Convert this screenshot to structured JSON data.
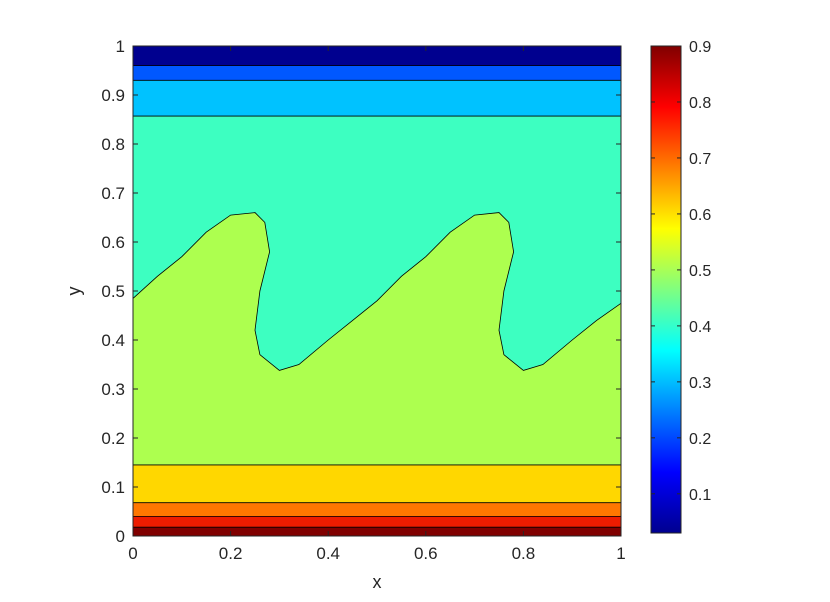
{
  "chart_data": {
    "type": "contour-filled",
    "xlabel": "x",
    "ylabel": "y",
    "xlim": [
      0,
      1
    ],
    "ylim": [
      0,
      1
    ],
    "xticks": [
      "0",
      "0.2",
      "0.4",
      "0.6",
      "0.8",
      "1"
    ],
    "yticks": [
      "0",
      "0.1",
      "0.2",
      "0.3",
      "0.4",
      "0.5",
      "0.6",
      "0.7",
      "0.8",
      "0.9",
      "1"
    ],
    "colorbar": {
      "colormap": "jet",
      "range": [
        0.03,
        0.9
      ],
      "ticks": [
        "0.1",
        "0.2",
        "0.3",
        "0.4",
        "0.5",
        "0.6",
        "0.7",
        "0.8",
        "0.9"
      ]
    },
    "bands": [
      {
        "level": 0.9,
        "color": "#800000",
        "y_top": 0.018
      },
      {
        "level": 0.8,
        "color": "#ED1C00",
        "y_top": 0.04
      },
      {
        "level": 0.7,
        "color": "#FF7700",
        "y_top": 0.068
      },
      {
        "level": 0.6,
        "color": "#FFD700",
        "y_top": 0.145
      },
      {
        "level": 0.5,
        "color": "#ADFF4F",
        "y_top": "wavy"
      },
      {
        "level": 0.4,
        "color": "#3DFFC1",
        "y_top": 0.857
      },
      {
        "level": 0.3,
        "color": "#00C2FF",
        "y_top": 0.93
      },
      {
        "level": 0.2,
        "color": "#0058FF",
        "y_top": 0.96
      },
      {
        "level": 0.1,
        "color": "#00008F",
        "y_top": 1.0
      }
    ],
    "wavy_interface": {
      "description_levels": "boundary between 0.5 and 0.4 regions",
      "points": [
        [
          0.0,
          0.485
        ],
        [
          0.05,
          0.53
        ],
        [
          0.1,
          0.57
        ],
        [
          0.15,
          0.62
        ],
        [
          0.2,
          0.655
        ],
        [
          0.25,
          0.66
        ],
        [
          0.27,
          0.64
        ],
        [
          0.28,
          0.58
        ],
        [
          0.26,
          0.5
        ],
        [
          0.25,
          0.42
        ],
        [
          0.26,
          0.37
        ],
        [
          0.3,
          0.338
        ],
        [
          0.34,
          0.35
        ],
        [
          0.4,
          0.4
        ],
        [
          0.45,
          0.44
        ],
        [
          0.5,
          0.48
        ],
        [
          0.55,
          0.53
        ],
        [
          0.6,
          0.57
        ],
        [
          0.65,
          0.62
        ],
        [
          0.7,
          0.655
        ],
        [
          0.75,
          0.66
        ],
        [
          0.77,
          0.64
        ],
        [
          0.78,
          0.58
        ],
        [
          0.76,
          0.5
        ],
        [
          0.75,
          0.42
        ],
        [
          0.76,
          0.37
        ],
        [
          0.8,
          0.338
        ],
        [
          0.84,
          0.35
        ],
        [
          0.9,
          0.4
        ],
        [
          0.95,
          0.44
        ],
        [
          1.0,
          0.475
        ]
      ]
    }
  }
}
